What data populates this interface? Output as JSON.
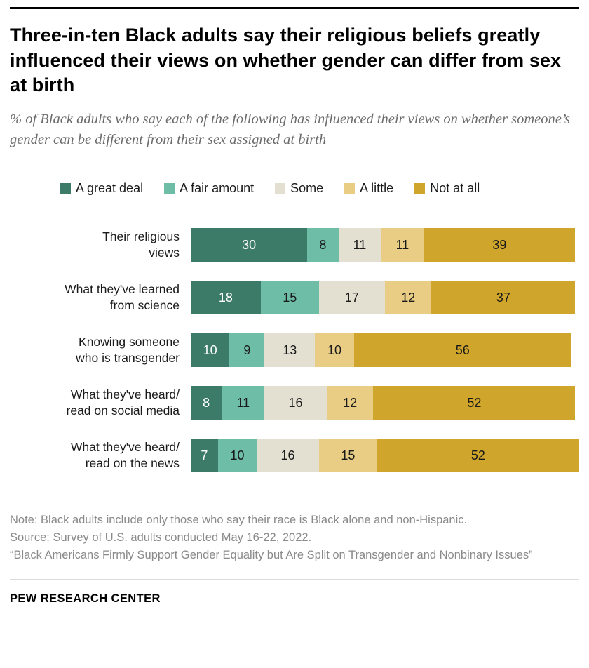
{
  "header": {
    "title": "Three-in-ten Black adults say their religious beliefs greatly influenced their views on whether gender can differ from sex at birth",
    "subtitle": "% of Black adults who say each of the following has influenced their views on whether someone’s gender can be different from their sex assigned at birth"
  },
  "chart_data": {
    "type": "bar",
    "variant": "horizontal_stacked",
    "xlim": [
      0,
      100
    ],
    "grid": false,
    "legend_position": "top",
    "categories": [
      "Their religious\nviews",
      "What they've learned\nfrom science",
      "Knowing someone\nwho is transgender",
      "What they've heard/\nread on social media",
      "What they've heard/\nread on the news"
    ],
    "series": [
      {
        "name": "A great deal",
        "color": "#3d7b69",
        "text_color": "#ffffff",
        "values": [
          30,
          18,
          10,
          8,
          7
        ]
      },
      {
        "name": "A fair amount",
        "color": "#6ebea7",
        "text_color": "#1a1a1a",
        "values": [
          8,
          15,
          9,
          11,
          10
        ]
      },
      {
        "name": "Some",
        "color": "#e3e0d2",
        "text_color": "#1a1a1a",
        "values": [
          11,
          17,
          13,
          16,
          16
        ]
      },
      {
        "name": "A little",
        "color": "#e9cd84",
        "text_color": "#1a1a1a",
        "values": [
          11,
          12,
          10,
          12,
          15
        ]
      },
      {
        "name": "Not at all",
        "color": "#d0a52b",
        "text_color": "#1a1a1a",
        "values": [
          39,
          37,
          56,
          52,
          52
        ]
      }
    ]
  },
  "footer": {
    "note_lines": [
      "Note: Black adults include only those who say their race is Black alone and non-Hispanic.",
      "Source: Survey of U.S. adults conducted May 16-22, 2022.",
      "“Black Americans Firmly Support Gender Equality but Are Split on Transgender and Nonbinary Issues”"
    ],
    "brand": "PEW RESEARCH CENTER"
  }
}
